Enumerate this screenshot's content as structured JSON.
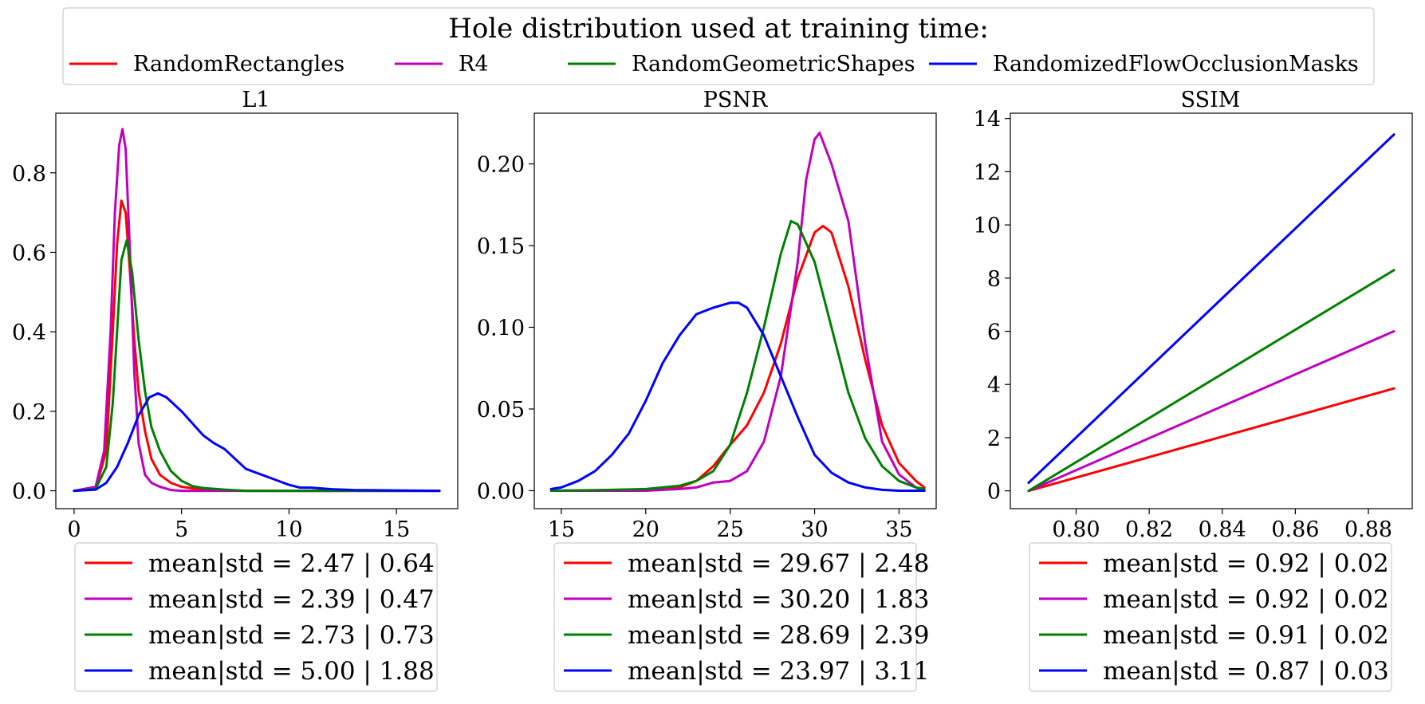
{
  "figure": {
    "legend_title": "Hole distribution used at training time:",
    "series": [
      {
        "name": "RandomRectangles",
        "color": "#ff0000"
      },
      {
        "name": "R4",
        "color": "#bf00bf"
      },
      {
        "name": "RandomGeometricShapes",
        "color": "#008000"
      },
      {
        "name": "RandomizedFlowOcclusionMasks",
        "color": "#0000ff"
      }
    ]
  },
  "chart_data": [
    {
      "type": "line",
      "title": "L1",
      "xlabel": "",
      "ylabel": "",
      "xlim": [
        -0.85,
        17.85
      ],
      "ylim": [
        -0.045,
        0.95
      ],
      "xticks": [
        0,
        5,
        10,
        15
      ],
      "yticks": [
        0.0,
        0.2,
        0.4,
        0.6,
        0.8
      ],
      "ytick_labels": [
        "0.0",
        "0.2",
        "0.4",
        "0.6",
        "0.8"
      ],
      "legend": [
        "mean|std = 2.47 | 0.64",
        "mean|std = 2.39 | 0.47",
        "mean|std = 2.73 | 0.73",
        "mean|std = 5.00 | 1.88"
      ],
      "series": [
        {
          "name": "RandomRectangles",
          "x": [
            0,
            1,
            1.5,
            1.8,
            2.0,
            2.2,
            2.4,
            2.6,
            2.8,
            3.0,
            3.3,
            3.6,
            4.0,
            4.5,
            5.0,
            6.0,
            8.0,
            17.0
          ],
          "y": [
            0,
            0.005,
            0.1,
            0.4,
            0.62,
            0.73,
            0.7,
            0.55,
            0.38,
            0.25,
            0.15,
            0.08,
            0.04,
            0.02,
            0.01,
            0.003,
            0,
            0
          ]
        },
        {
          "name": "R4",
          "x": [
            0,
            1,
            1.4,
            1.7,
            1.9,
            2.1,
            2.25,
            2.4,
            2.6,
            2.8,
            3.0,
            3.3,
            3.6,
            4.0,
            4.5,
            5.0,
            6.0,
            17.0
          ],
          "y": [
            0,
            0.01,
            0.1,
            0.4,
            0.7,
            0.87,
            0.91,
            0.86,
            0.6,
            0.3,
            0.12,
            0.04,
            0.02,
            0.01,
            0.002,
            0,
            0,
            0
          ]
        },
        {
          "name": "RandomGeometricShapes",
          "x": [
            0,
            1,
            1.5,
            1.8,
            2.0,
            2.2,
            2.45,
            2.7,
            3.0,
            3.3,
            3.6,
            4.0,
            4.5,
            5.0,
            5.5,
            6.0,
            7.0,
            8.0,
            17.0
          ],
          "y": [
            0,
            0.005,
            0.06,
            0.22,
            0.4,
            0.58,
            0.63,
            0.55,
            0.38,
            0.25,
            0.16,
            0.1,
            0.05,
            0.025,
            0.012,
            0.007,
            0.003,
            0,
            0
          ]
        },
        {
          "name": "RandomizedFlowOcclusionMasks",
          "x": [
            0,
            1,
            1.5,
            2.0,
            2.5,
            3.0,
            3.5,
            3.9,
            4.3,
            5.0,
            5.5,
            6.0,
            6.5,
            7.0,
            7.5,
            8.0,
            9.0,
            10.0,
            10.5,
            11.0,
            12.0,
            13.0,
            17.0
          ],
          "y": [
            0,
            0.003,
            0.02,
            0.06,
            0.12,
            0.19,
            0.235,
            0.245,
            0.235,
            0.2,
            0.17,
            0.14,
            0.12,
            0.105,
            0.08,
            0.055,
            0.035,
            0.015,
            0.008,
            0.008,
            0.004,
            0.002,
            0
          ]
        }
      ]
    },
    {
      "type": "line",
      "title": "PSNR",
      "xlabel": "",
      "ylabel": "",
      "xlim": [
        13.4,
        37.2
      ],
      "ylim": [
        -0.011,
        0.231
      ],
      "xticks": [
        15,
        20,
        25,
        30,
        35
      ],
      "yticks": [
        0.0,
        0.05,
        0.1,
        0.15,
        0.2
      ],
      "ytick_labels": [
        "0.00",
        "0.05",
        "0.10",
        "0.15",
        "0.20"
      ],
      "legend": [
        "mean|std = 29.67 | 2.48",
        "mean|std = 30.20 | 1.83",
        "mean|std = 28.69 | 2.39",
        "mean|std = 23.97 | 3.11"
      ],
      "series": [
        {
          "name": "RandomRectangles",
          "x": [
            14.4,
            20,
            22,
            23,
            24,
            25,
            26,
            27,
            28,
            29,
            30,
            30.5,
            31,
            32,
            33,
            34,
            35,
            36,
            36.5
          ],
          "y": [
            0,
            0.0005,
            0.002,
            0.006,
            0.015,
            0.028,
            0.04,
            0.06,
            0.09,
            0.13,
            0.158,
            0.162,
            0.158,
            0.125,
            0.08,
            0.04,
            0.017,
            0.006,
            0.002
          ]
        },
        {
          "name": "R4",
          "x": [
            14.4,
            20,
            22,
            23,
            24,
            25,
            26,
            27,
            28,
            29,
            29.5,
            30,
            30.3,
            31,
            32,
            33,
            34,
            35,
            36,
            36.5
          ],
          "y": [
            0,
            0,
            0.001,
            0.002,
            0.005,
            0.006,
            0.012,
            0.03,
            0.07,
            0.14,
            0.19,
            0.215,
            0.219,
            0.2,
            0.165,
            0.09,
            0.03,
            0.01,
            0.002,
            0
          ]
        },
        {
          "name": "RandomGeometricShapes",
          "x": [
            14.4,
            18,
            20,
            21,
            22,
            23,
            24,
            25,
            26,
            27,
            28,
            28.6,
            29,
            30,
            31,
            32,
            33,
            34,
            35,
            36,
            36.5
          ],
          "y": [
            0,
            0.0005,
            0.001,
            0.002,
            0.003,
            0.006,
            0.012,
            0.028,
            0.06,
            0.1,
            0.145,
            0.165,
            0.163,
            0.14,
            0.1,
            0.06,
            0.032,
            0.015,
            0.006,
            0.002,
            0.001
          ]
        },
        {
          "name": "RandomizedFlowOcclusionMasks",
          "x": [
            14.4,
            15,
            16,
            17,
            18,
            19,
            20,
            21,
            22,
            23,
            24,
            25,
            25.5,
            26,
            27,
            28,
            29,
            30,
            31,
            32,
            33,
            34,
            35,
            36.5
          ],
          "y": [
            0.001,
            0.002,
            0.006,
            0.012,
            0.022,
            0.035,
            0.055,
            0.078,
            0.095,
            0.108,
            0.112,
            0.115,
            0.115,
            0.112,
            0.095,
            0.07,
            0.045,
            0.022,
            0.011,
            0.005,
            0.002,
            0.0005,
            0,
            0
          ]
        }
      ]
    },
    {
      "type": "line",
      "title": "SSIM",
      "xlabel": "",
      "ylabel": "",
      "xlim": [
        0.782,
        0.892
      ],
      "ylim": [
        -0.67,
        14.2
      ],
      "xticks": [
        0.8,
        0.82,
        0.84,
        0.86,
        0.88
      ],
      "xtick_labels": [
        "0.80",
        "0.82",
        "0.84",
        "0.86",
        "0.88"
      ],
      "yticks": [
        0,
        2,
        4,
        6,
        8,
        10,
        12,
        14
      ],
      "ytick_labels": [
        "0",
        "2",
        "4",
        "6",
        "8",
        "10",
        "12",
        "14"
      ],
      "legend": [
        "mean|std = 0.92 | 0.02",
        "mean|std = 0.92 | 0.02",
        "mean|std = 0.91 | 0.02",
        "mean|std = 0.87 | 0.03"
      ],
      "series": [
        {
          "name": "RandomRectangles",
          "x": [
            0.787,
            0.887
          ],
          "y": [
            0,
            3.85
          ]
        },
        {
          "name": "R4",
          "x": [
            0.787,
            0.887
          ],
          "y": [
            0,
            6.0
          ]
        },
        {
          "name": "RandomGeometricShapes",
          "x": [
            0.787,
            0.887
          ],
          "y": [
            0,
            8.3
          ]
        },
        {
          "name": "RandomizedFlowOcclusionMasks",
          "x": [
            0.787,
            0.887
          ],
          "y": [
            0.3,
            13.4
          ]
        }
      ]
    }
  ]
}
